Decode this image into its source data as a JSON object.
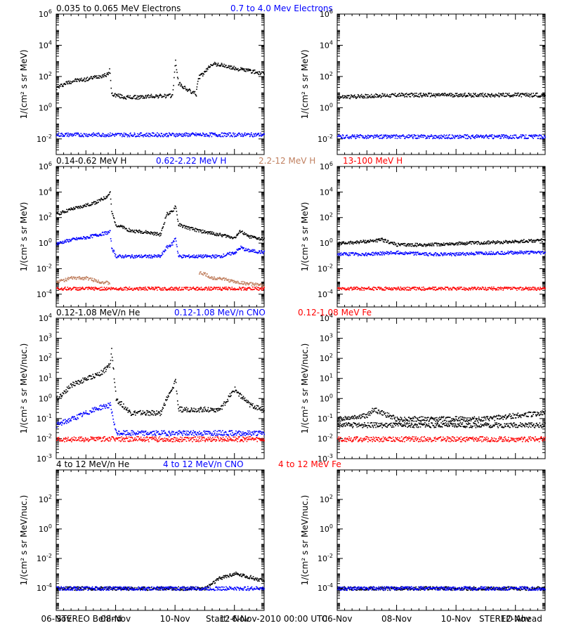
{
  "footer": {
    "left": "STEREO Behind",
    "center": "Start:  6-Nov-2010 00:00 UTC",
    "right": "STEREO Ahead"
  },
  "x_ticks": [
    "06-Nov",
    "08-Nov",
    "10-Nov",
    "12-Nov"
  ],
  "colors": {
    "black": "#000000",
    "blue": "#0000ff",
    "tan": "#c08060",
    "red": "#ff0000"
  },
  "chart_data": [
    {
      "id": "electrons",
      "type": "scatter",
      "ylabel": "1/(cm² s sr MeV)",
      "yscale": "log",
      "ylim": [
        0.001,
        1000000
      ],
      "yticks": [
        {
          "base": "10",
          "exp": "-2",
          "value": 0.01
        },
        {
          "base": "10",
          "exp": "0",
          "value": 1
        },
        {
          "base": "10",
          "exp": "2",
          "value": 100
        },
        {
          "base": "10",
          "exp": "4",
          "value": 10000
        },
        {
          "base": "10",
          "exp": "6",
          "value": 1000000
        }
      ],
      "xlim": [
        0,
        7
      ],
      "xunit": "days since 06-Nov-2010",
      "legend": [
        {
          "label": "0.035 to 0.065 MeV Electrons",
          "color": "#000000"
        },
        {
          "label": "0.7 to 4.0 Mev Electrons",
          "color": "#0000ff"
        }
      ],
      "series": [
        {
          "color": "#000000",
          "panel": "behind",
          "x": [
            0.0,
            0.3,
            0.6,
            1.0,
            1.3,
            1.5,
            1.75,
            1.78,
            1.85,
            2.3,
            2.8,
            3.2,
            3.5,
            3.8,
            3.9,
            4.0,
            4.1,
            4.3,
            4.5,
            4.7,
            4.72,
            4.8,
            5.0,
            5.2,
            5.5,
            6.0,
            6.5,
            7.0
          ],
          "y": [
            20,
            40,
            60,
            70,
            100,
            120,
            150,
            400,
            8,
            5,
            5,
            6,
            6,
            6,
            7,
            1000,
            40,
            20,
            12,
            8,
            30,
            100,
            200,
            700,
            600,
            350,
            250,
            150
          ]
        },
        {
          "color": "#0000ff",
          "panel": "behind",
          "x": [
            0,
            1,
            2,
            3,
            4,
            5,
            6,
            7
          ],
          "y": [
            0.02,
            0.02,
            0.02,
            0.02,
            0.02,
            0.02,
            0.02,
            0.02
          ]
        },
        {
          "color": "#000000",
          "panel": "ahead",
          "x": [
            0,
            1,
            2,
            3,
            4,
            5,
            6,
            7
          ],
          "y": [
            5,
            6,
            7,
            7,
            7,
            7,
            7,
            7
          ]
        },
        {
          "color": "#0000ff",
          "panel": "ahead",
          "x": [
            0,
            1,
            2,
            3,
            4,
            5,
            6,
            7
          ],
          "y": [
            0.015,
            0.015,
            0.015,
            0.015,
            0.015,
            0.015,
            0.015,
            0.015
          ]
        }
      ]
    },
    {
      "id": "protons",
      "type": "scatter",
      "ylabel": "1/(cm² s sr MeV)",
      "yscale": "log",
      "ylim": [
        1e-05,
        1000000
      ],
      "yticks": [
        {
          "base": "10",
          "exp": "-4",
          "value": 0.0001
        },
        {
          "base": "10",
          "exp": "-2",
          "value": 0.01
        },
        {
          "base": "10",
          "exp": "0",
          "value": 1
        },
        {
          "base": "10",
          "exp": "2",
          "value": 100
        },
        {
          "base": "10",
          "exp": "4",
          "value": 10000
        },
        {
          "base": "10",
          "exp": "6",
          "value": 1000000
        }
      ],
      "xlim": [
        0,
        7
      ],
      "legend": [
        {
          "label": "0.14-0.62 MeV H",
          "color": "#000000"
        },
        {
          "label": "0.62-2.22 MeV H",
          "color": "#0000ff"
        },
        {
          "label": "2.2-12 MeV H",
          "color": "#c08060"
        },
        {
          "label": "13-100 MeV H",
          "color": "#ff0000"
        }
      ],
      "series": [
        {
          "color": "#000000",
          "panel": "behind",
          "x": [
            0.0,
            0.5,
            1.0,
            1.4,
            1.7,
            1.8,
            1.85,
            2.0,
            2.5,
            3.0,
            3.5,
            3.7,
            3.9,
            4.0,
            4.1,
            4.5,
            5.0,
            5.5,
            6.0,
            6.2,
            6.4,
            7.0
          ],
          "y": [
            200,
            500,
            1000,
            2000,
            5000,
            10000,
            300,
            30,
            10,
            8,
            5,
            200,
            300,
            1000,
            30,
            15,
            8,
            5,
            3,
            10,
            4,
            2
          ]
        },
        {
          "color": "#0000ff",
          "panel": "behind",
          "x": [
            0.0,
            0.5,
            1.0,
            1.4,
            1.8,
            1.85,
            2.0,
            2.5,
            3.0,
            3.5,
            3.7,
            3.9,
            4.0,
            4.1,
            4.5,
            5.0,
            5.5,
            6.0,
            6.2,
            6.4,
            7.0
          ],
          "y": [
            1,
            2,
            3,
            5,
            8,
            0.5,
            0.1,
            0.1,
            0.1,
            0.1,
            0.5,
            1,
            3,
            0.1,
            0.1,
            0.1,
            0.1,
            0.2,
            0.5,
            0.3,
            0.2
          ]
        },
        {
          "color": "#c08060",
          "panel": "behind",
          "x": [
            0.0,
            0.5,
            1.0,
            1.5,
            1.8,
            2.0,
            4.5,
            4.8,
            5.0,
            5.2,
            5.5,
            6.0,
            7.0
          ],
          "y": [
            0.001,
            0.002,
            0.002,
            0.001,
            0.0008,
            null,
            null,
            0.005,
            0.004,
            0.002,
            0.002,
            0.001,
            0.0005
          ]
        },
        {
          "color": "#ff0000",
          "panel": "behind",
          "x": [
            0,
            1,
            2,
            3,
            4,
            5,
            6,
            7
          ],
          "y": [
            0.0003,
            0.0003,
            0.0003,
            0.0003,
            0.0003,
            0.0003,
            0.0003,
            0.0003
          ]
        },
        {
          "color": "#000000",
          "panel": "ahead",
          "x": [
            0.0,
            1.0,
            1.5,
            2.0,
            3.0,
            4.0,
            5.0,
            6.0,
            7.0
          ],
          "y": [
            1,
            1.5,
            2,
            0.8,
            0.8,
            1,
            1.2,
            1.5,
            1.8
          ]
        },
        {
          "color": "#0000ff",
          "panel": "ahead",
          "x": [
            0.0,
            1.0,
            2.0,
            3.0,
            4.0,
            5.0,
            6.0,
            7.0
          ],
          "y": [
            0.15,
            0.15,
            0.2,
            0.15,
            0.15,
            0.18,
            0.2,
            0.2
          ]
        },
        {
          "color": "#ff0000",
          "panel": "ahead",
          "x": [
            0,
            1,
            2,
            3,
            4,
            5,
            6,
            7
          ],
          "y": [
            0.0003,
            0.0003,
            0.0003,
            0.0003,
            0.0003,
            0.0003,
            0.0003,
            0.0003
          ]
        }
      ]
    },
    {
      "id": "low-heavy",
      "type": "scatter",
      "ylabel": "1/(cm² s sr MeV/nuc.)",
      "yscale": "log",
      "ylim": [
        0.001,
        10000
      ],
      "yticks": [
        {
          "base": "10",
          "exp": "-3",
          "value": 0.001
        },
        {
          "base": "10",
          "exp": "-2",
          "value": 0.01
        },
        {
          "base": "10",
          "exp": "-1",
          "value": 0.1
        },
        {
          "base": "10",
          "exp": "0",
          "value": 1
        },
        {
          "base": "10",
          "exp": "1",
          "value": 10
        },
        {
          "base": "10",
          "exp": "2",
          "value": 100
        },
        {
          "base": "10",
          "exp": "3",
          "value": 1000
        },
        {
          "base": "10",
          "exp": "4",
          "value": 10000
        }
      ],
      "xlim": [
        0,
        7
      ],
      "legend": [
        {
          "label": "0.12-1.08 MeV/n He",
          "color": "#000000"
        },
        {
          "label": "0.12-1.08 MeV/n CNO",
          "color": "#0000ff"
        },
        {
          "label": "0.12-1.08 MeV Fe",
          "color": "#ff0000"
        }
      ],
      "series": [
        {
          "color": "#000000",
          "panel": "behind",
          "x": [
            0.0,
            0.5,
            1.0,
            1.5,
            1.8,
            1.85,
            2.0,
            2.5,
            3.0,
            3.5,
            3.7,
            3.9,
            4.0,
            4.1,
            4.5,
            5.0,
            5.5,
            6.0,
            6.5,
            7.0
          ],
          "y": [
            1,
            5,
            10,
            20,
            50,
            300,
            1,
            0.2,
            0.2,
            0.2,
            1,
            3,
            10,
            0.3,
            0.3,
            0.3,
            0.3,
            3,
            0.5,
            0.3
          ]
        },
        {
          "color": "#0000ff",
          "panel": "behind",
          "x": [
            0.0,
            0.5,
            1.0,
            1.5,
            1.8,
            2.0,
            3.0,
            4.0,
            5.0,
            6.0,
            7.0
          ],
          "y": [
            0.05,
            0.1,
            0.2,
            0.4,
            0.5,
            0.02,
            0.02,
            0.02,
            0.02,
            0.02,
            0.02
          ]
        },
        {
          "color": "#ff0000",
          "panel": "behind",
          "x": [
            0,
            1,
            2,
            3,
            4,
            5,
            6,
            7
          ],
          "y": [
            0.01,
            0.01,
            0.01,
            0.01,
            0.01,
            0.01,
            0.01,
            0.01
          ]
        },
        {
          "color": "#000000",
          "panel": "ahead",
          "x": [
            0.0,
            1.0,
            1.2,
            1.5,
            2.0,
            3.0,
            4.0,
            5.0,
            6.0,
            7.0
          ],
          "y": [
            0.1,
            0.15,
            0.3,
            0.2,
            0.1,
            0.1,
            0.1,
            0.1,
            0.15,
            0.2
          ]
        },
        {
          "color": "#000000",
          "panel": "ahead",
          "x": [
            0,
            7
          ],
          "y": [
            0.05,
            0.05
          ]
        },
        {
          "color": "#ff0000",
          "panel": "ahead",
          "x": [
            0,
            1,
            2,
            3,
            4,
            5,
            6,
            7
          ],
          "y": [
            0.01,
            0.01,
            0.01,
            0.01,
            0.01,
            0.01,
            0.01,
            0.01
          ]
        }
      ]
    },
    {
      "id": "high-heavy",
      "type": "scatter",
      "ylabel": "1/(cm² s sr MeV/nuc.)",
      "yscale": "log",
      "ylim": [
        3e-06,
        10000
      ],
      "yticks": [
        {
          "base": "10",
          "exp": "-4",
          "value": 0.0001
        },
        {
          "base": "10",
          "exp": "-2",
          "value": 0.01
        },
        {
          "base": "10",
          "exp": "0",
          "value": 1
        },
        {
          "base": "10",
          "exp": "2",
          "value": 100
        }
      ],
      "xlim": [
        0,
        7
      ],
      "legend": [
        {
          "label": "4 to 12 MeV/n He",
          "color": "#000000"
        },
        {
          "label": "4 to 12 MeV/n CNO",
          "color": "#0000ff"
        },
        {
          "label": "4 to 12 MeV Fe",
          "color": "#ff0000"
        }
      ],
      "series": [
        {
          "color": "#000000",
          "panel": "behind",
          "x": [
            0,
            1,
            2,
            3,
            4,
            5,
            5.5,
            6,
            6.5,
            7
          ],
          "y": [
            0.0001,
            0.0001,
            0.0001,
            0.0001,
            0.0001,
            0.0001,
            0.0005,
            0.001,
            0.0006,
            0.0003
          ]
        },
        {
          "color": "#0000ff",
          "panel": "behind",
          "x": [
            0,
            7
          ],
          "y": [
            0.0001,
            0.0001
          ]
        },
        {
          "color": "#000000",
          "panel": "ahead",
          "x": [
            0,
            7
          ],
          "y": [
            0.0001,
            0.0001
          ]
        },
        {
          "color": "#0000ff",
          "panel": "ahead",
          "x": [
            0,
            7
          ],
          "y": [
            0.0001,
            0.0001
          ]
        }
      ]
    }
  ]
}
